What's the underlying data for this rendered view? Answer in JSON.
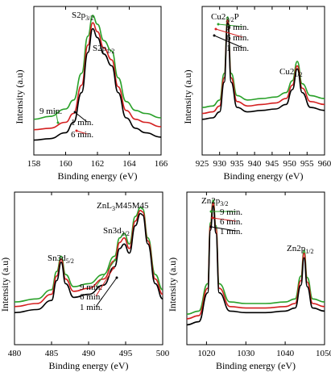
{
  "colors": {
    "9 min.": "#2aa12a",
    "6 min.": "#d42020",
    "1 min.": "#000000"
  },
  "chart_data": [
    {
      "type": "line",
      "panel": "S2p",
      "xlabel": "Binding energy (eV)",
      "ylabel": "Intensity (a.u)",
      "xlim": [
        158,
        166
      ],
      "xticks": [
        "158",
        "160",
        "162",
        "164",
        "166"
      ],
      "yticks_shown": false,
      "grid": false,
      "peak_labels": [
        {
          "label": "S2p",
          "sub": "3/2",
          "x": 161.7
        },
        {
          "label": "S2p",
          "sub": "1/2",
          "x": 162.9
        }
      ],
      "series_annotations": [
        "9 min.",
        "1 min.",
        "6 min."
      ],
      "series": [
        {
          "name": "9 min.",
          "x": [
            158.0,
            159.0,
            160.0,
            160.5,
            161.0,
            161.4,
            161.7,
            162.0,
            162.4,
            162.9,
            163.3,
            163.8,
            164.4,
            165.0,
            166.0
          ],
          "y": [
            0.24,
            0.26,
            0.31,
            0.37,
            0.55,
            0.8,
            0.94,
            0.88,
            0.77,
            0.7,
            0.52,
            0.36,
            0.3,
            0.28,
            0.25
          ]
        },
        {
          "name": "6 min.",
          "x": [
            158.0,
            159.0,
            160.0,
            160.5,
            161.0,
            161.4,
            161.7,
            162.0,
            162.4,
            162.9,
            163.3,
            163.8,
            164.4,
            165.0,
            166.0
          ],
          "y": [
            0.17,
            0.18,
            0.22,
            0.28,
            0.47,
            0.74,
            0.89,
            0.83,
            0.72,
            0.64,
            0.46,
            0.3,
            0.24,
            0.22,
            0.19
          ]
        },
        {
          "name": "1 min.",
          "x": [
            158.0,
            159.0,
            160.0,
            160.5,
            161.0,
            161.4,
            161.7,
            162.0,
            162.4,
            162.9,
            163.3,
            163.8,
            164.4,
            165.0,
            166.0
          ],
          "y": [
            0.1,
            0.11,
            0.15,
            0.22,
            0.42,
            0.69,
            0.85,
            0.79,
            0.68,
            0.6,
            0.42,
            0.25,
            0.18,
            0.15,
            0.12
          ]
        }
      ]
    },
    {
      "type": "line",
      "panel": "Cu2p",
      "xlabel": "Binding energy (eV)",
      "ylabel": "Intensity (a.u)",
      "xlim": [
        925,
        960
      ],
      "xticks": [
        "925",
        "930",
        "935",
        "940",
        "945",
        "950",
        "955",
        "960"
      ],
      "yticks_shown": false,
      "grid": false,
      "peak_labels": [
        {
          "label": "Cu2",
          "sub": "3/2",
          "suffix": "P",
          "x": 932.3
        },
        {
          "label": "Cu2",
          "sub": "1/2",
          "x": 952.2
        }
      ],
      "series_annotations": [
        "9 min.",
        "6 min.",
        "1 min."
      ],
      "series": [
        {
          "name": "9 min.",
          "x": [
            925,
            928,
            930,
            931.3,
            932.3,
            933.3,
            935,
            938,
            942,
            946,
            949,
            950.8,
            952.2,
            953.6,
            956,
            960
          ],
          "y": [
            0.32,
            0.33,
            0.37,
            0.55,
            0.93,
            0.55,
            0.4,
            0.37,
            0.38,
            0.39,
            0.42,
            0.5,
            0.63,
            0.48,
            0.4,
            0.38
          ]
        },
        {
          "name": "6 min.",
          "x": [
            925,
            928,
            930,
            931.3,
            932.3,
            933.3,
            935,
            938,
            942,
            946,
            949,
            950.8,
            952.2,
            953.6,
            956,
            960
          ],
          "y": [
            0.28,
            0.29,
            0.33,
            0.52,
            0.91,
            0.52,
            0.36,
            0.33,
            0.34,
            0.35,
            0.38,
            0.47,
            0.6,
            0.45,
            0.36,
            0.34
          ]
        },
        {
          "name": "1 min.",
          "x": [
            925,
            928,
            930,
            931.3,
            932.3,
            933.3,
            935,
            938,
            942,
            946,
            949,
            950.8,
            952.2,
            953.6,
            956,
            960
          ],
          "y": [
            0.24,
            0.25,
            0.29,
            0.49,
            0.89,
            0.49,
            0.32,
            0.29,
            0.3,
            0.31,
            0.34,
            0.44,
            0.58,
            0.42,
            0.32,
            0.3
          ]
        }
      ]
    },
    {
      "type": "line",
      "panel": "Sn3d + ZnLMM",
      "xlabel": "Binding energy (eV)",
      "ylabel": "Intensity (a.u)",
      "xlim": [
        480,
        500
      ],
      "xticks": [
        "480",
        "485",
        "490",
        "495",
        "500"
      ],
      "yticks_shown": false,
      "grid": false,
      "peak_labels": [
        {
          "label": "Sn3d",
          "sub": "5/2",
          "x": 486.3
        },
        {
          "label": "Sn3d",
          "sub": "3/2",
          "x": 494.8
        },
        {
          "label": "ZnL",
          "sub": "3",
          "suffix": "M45M45",
          "x": 497.3
        }
      ],
      "series_annotations": [
        "9 min.",
        "6 min.",
        "1 min."
      ],
      "series": [
        {
          "name": "9 min.",
          "x": [
            480,
            483,
            485,
            485.7,
            486.3,
            486.9,
            488,
            490,
            492,
            493.5,
            494.2,
            494.8,
            495.5,
            496.3,
            497.0,
            497.3,
            498.0,
            499.0,
            500
          ],
          "y": [
            0.28,
            0.3,
            0.36,
            0.48,
            0.58,
            0.46,
            0.38,
            0.4,
            0.46,
            0.58,
            0.7,
            0.73,
            0.66,
            0.84,
            0.9,
            0.89,
            0.7,
            0.46,
            0.36
          ]
        },
        {
          "name": "6 min.",
          "x": [
            480,
            483,
            485,
            485.7,
            486.3,
            486.9,
            488,
            490,
            492,
            493.5,
            494.2,
            494.8,
            495.5,
            496.3,
            497.0,
            497.3,
            498.0,
            499.0,
            500
          ],
          "y": [
            0.25,
            0.27,
            0.33,
            0.45,
            0.56,
            0.43,
            0.35,
            0.37,
            0.43,
            0.55,
            0.67,
            0.7,
            0.63,
            0.81,
            0.88,
            0.87,
            0.68,
            0.43,
            0.33
          ]
        },
        {
          "name": "1 min.",
          "x": [
            480,
            483,
            485,
            485.7,
            486.3,
            486.9,
            488,
            490,
            492,
            493.5,
            494.2,
            494.8,
            495.5,
            496.3,
            497.0,
            497.3,
            498.0,
            499.0,
            500
          ],
          "y": [
            0.21,
            0.23,
            0.29,
            0.42,
            0.54,
            0.4,
            0.31,
            0.33,
            0.39,
            0.51,
            0.63,
            0.66,
            0.6,
            0.78,
            0.86,
            0.85,
            0.66,
            0.4,
            0.3
          ]
        }
      ]
    },
    {
      "type": "line",
      "panel": "Zn2p",
      "xlabel": "Binding energy (eV)",
      "ylabel": "Intensity (a.u)",
      "xlim": [
        1015,
        1050
      ],
      "xticks": [
        "1020",
        "1030",
        "1040",
        "1050"
      ],
      "yticks_shown": false,
      "grid": false,
      "peak_labels": [
        {
          "label": "Zn2p",
          "sub": "3/2",
          "x": 1021.7
        },
        {
          "label": "Zn2p",
          "sub": "1/2",
          "x": 1044.8
        }
      ],
      "series_annotations": [
        "9 min.",
        "6 min.",
        "1 min."
      ],
      "series": [
        {
          "name": "9 min.",
          "x": [
            1015,
            1018,
            1020.3,
            1021.0,
            1021.7,
            1022.4,
            1023.2,
            1026,
            1030,
            1035,
            1040,
            1042.5,
            1044.0,
            1044.8,
            1045.6,
            1047,
            1050
          ],
          "y": [
            0.2,
            0.22,
            0.4,
            0.8,
            0.95,
            0.78,
            0.4,
            0.28,
            0.27,
            0.27,
            0.28,
            0.3,
            0.45,
            0.62,
            0.44,
            0.3,
            0.28
          ]
        },
        {
          "name": "6 min.",
          "x": [
            1015,
            1018,
            1020.3,
            1021.0,
            1021.7,
            1022.4,
            1023.2,
            1026,
            1030,
            1035,
            1040,
            1042.5,
            1044.0,
            1044.8,
            1045.6,
            1047,
            1050
          ],
          "y": [
            0.17,
            0.19,
            0.37,
            0.78,
            0.93,
            0.76,
            0.37,
            0.25,
            0.24,
            0.24,
            0.25,
            0.27,
            0.42,
            0.6,
            0.41,
            0.27,
            0.25
          ]
        },
        {
          "name": "1 min.",
          "x": [
            1015,
            1018,
            1020.3,
            1021.0,
            1021.7,
            1022.4,
            1023.2,
            1026,
            1030,
            1035,
            1040,
            1042.5,
            1044.0,
            1044.8,
            1045.6,
            1047,
            1050
          ],
          "y": [
            0.13,
            0.15,
            0.34,
            0.75,
            0.91,
            0.73,
            0.34,
            0.22,
            0.21,
            0.21,
            0.22,
            0.24,
            0.39,
            0.57,
            0.38,
            0.24,
            0.22
          ]
        }
      ]
    }
  ]
}
